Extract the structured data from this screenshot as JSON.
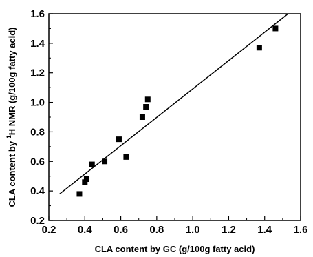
{
  "chart_data": {
    "type": "scatter",
    "title": "",
    "xlabel": "CLA content by GC (g/100g fatty acid)",
    "ylabel": {
      "prefix": "CLA content by ",
      "superscript": "1",
      "suffix": "H NMR  (g/100g fatty acid)"
    },
    "xlim": [
      0.2,
      1.6
    ],
    "ylim": [
      0.2,
      1.6
    ],
    "xticks": [
      "0.2",
      "0.4",
      "0.6",
      "0.8",
      "1.0",
      "1.2",
      "1.4",
      "1.6"
    ],
    "yticks": [
      "0.2",
      "0.4",
      "0.6",
      "0.8",
      "1.0",
      "1.2",
      "1.4",
      "1.6"
    ],
    "points": [
      {
        "x": 0.37,
        "y": 0.38
      },
      {
        "x": 0.4,
        "y": 0.46
      },
      {
        "x": 0.41,
        "y": 0.48
      },
      {
        "x": 0.44,
        "y": 0.58
      },
      {
        "x": 0.51,
        "y": 0.6
      },
      {
        "x": 0.59,
        "y": 0.75
      },
      {
        "x": 0.63,
        "y": 0.63
      },
      {
        "x": 0.72,
        "y": 0.9
      },
      {
        "x": 0.74,
        "y": 0.97
      },
      {
        "x": 0.75,
        "y": 1.02
      },
      {
        "x": 1.37,
        "y": 1.37
      },
      {
        "x": 1.46,
        "y": 1.5
      }
    ],
    "fit_line": {
      "x": [
        0.26,
        1.53
      ],
      "y": [
        0.38,
        1.6
      ]
    },
    "grid": false,
    "legend": "none",
    "marker": "square",
    "color": "#000000"
  }
}
